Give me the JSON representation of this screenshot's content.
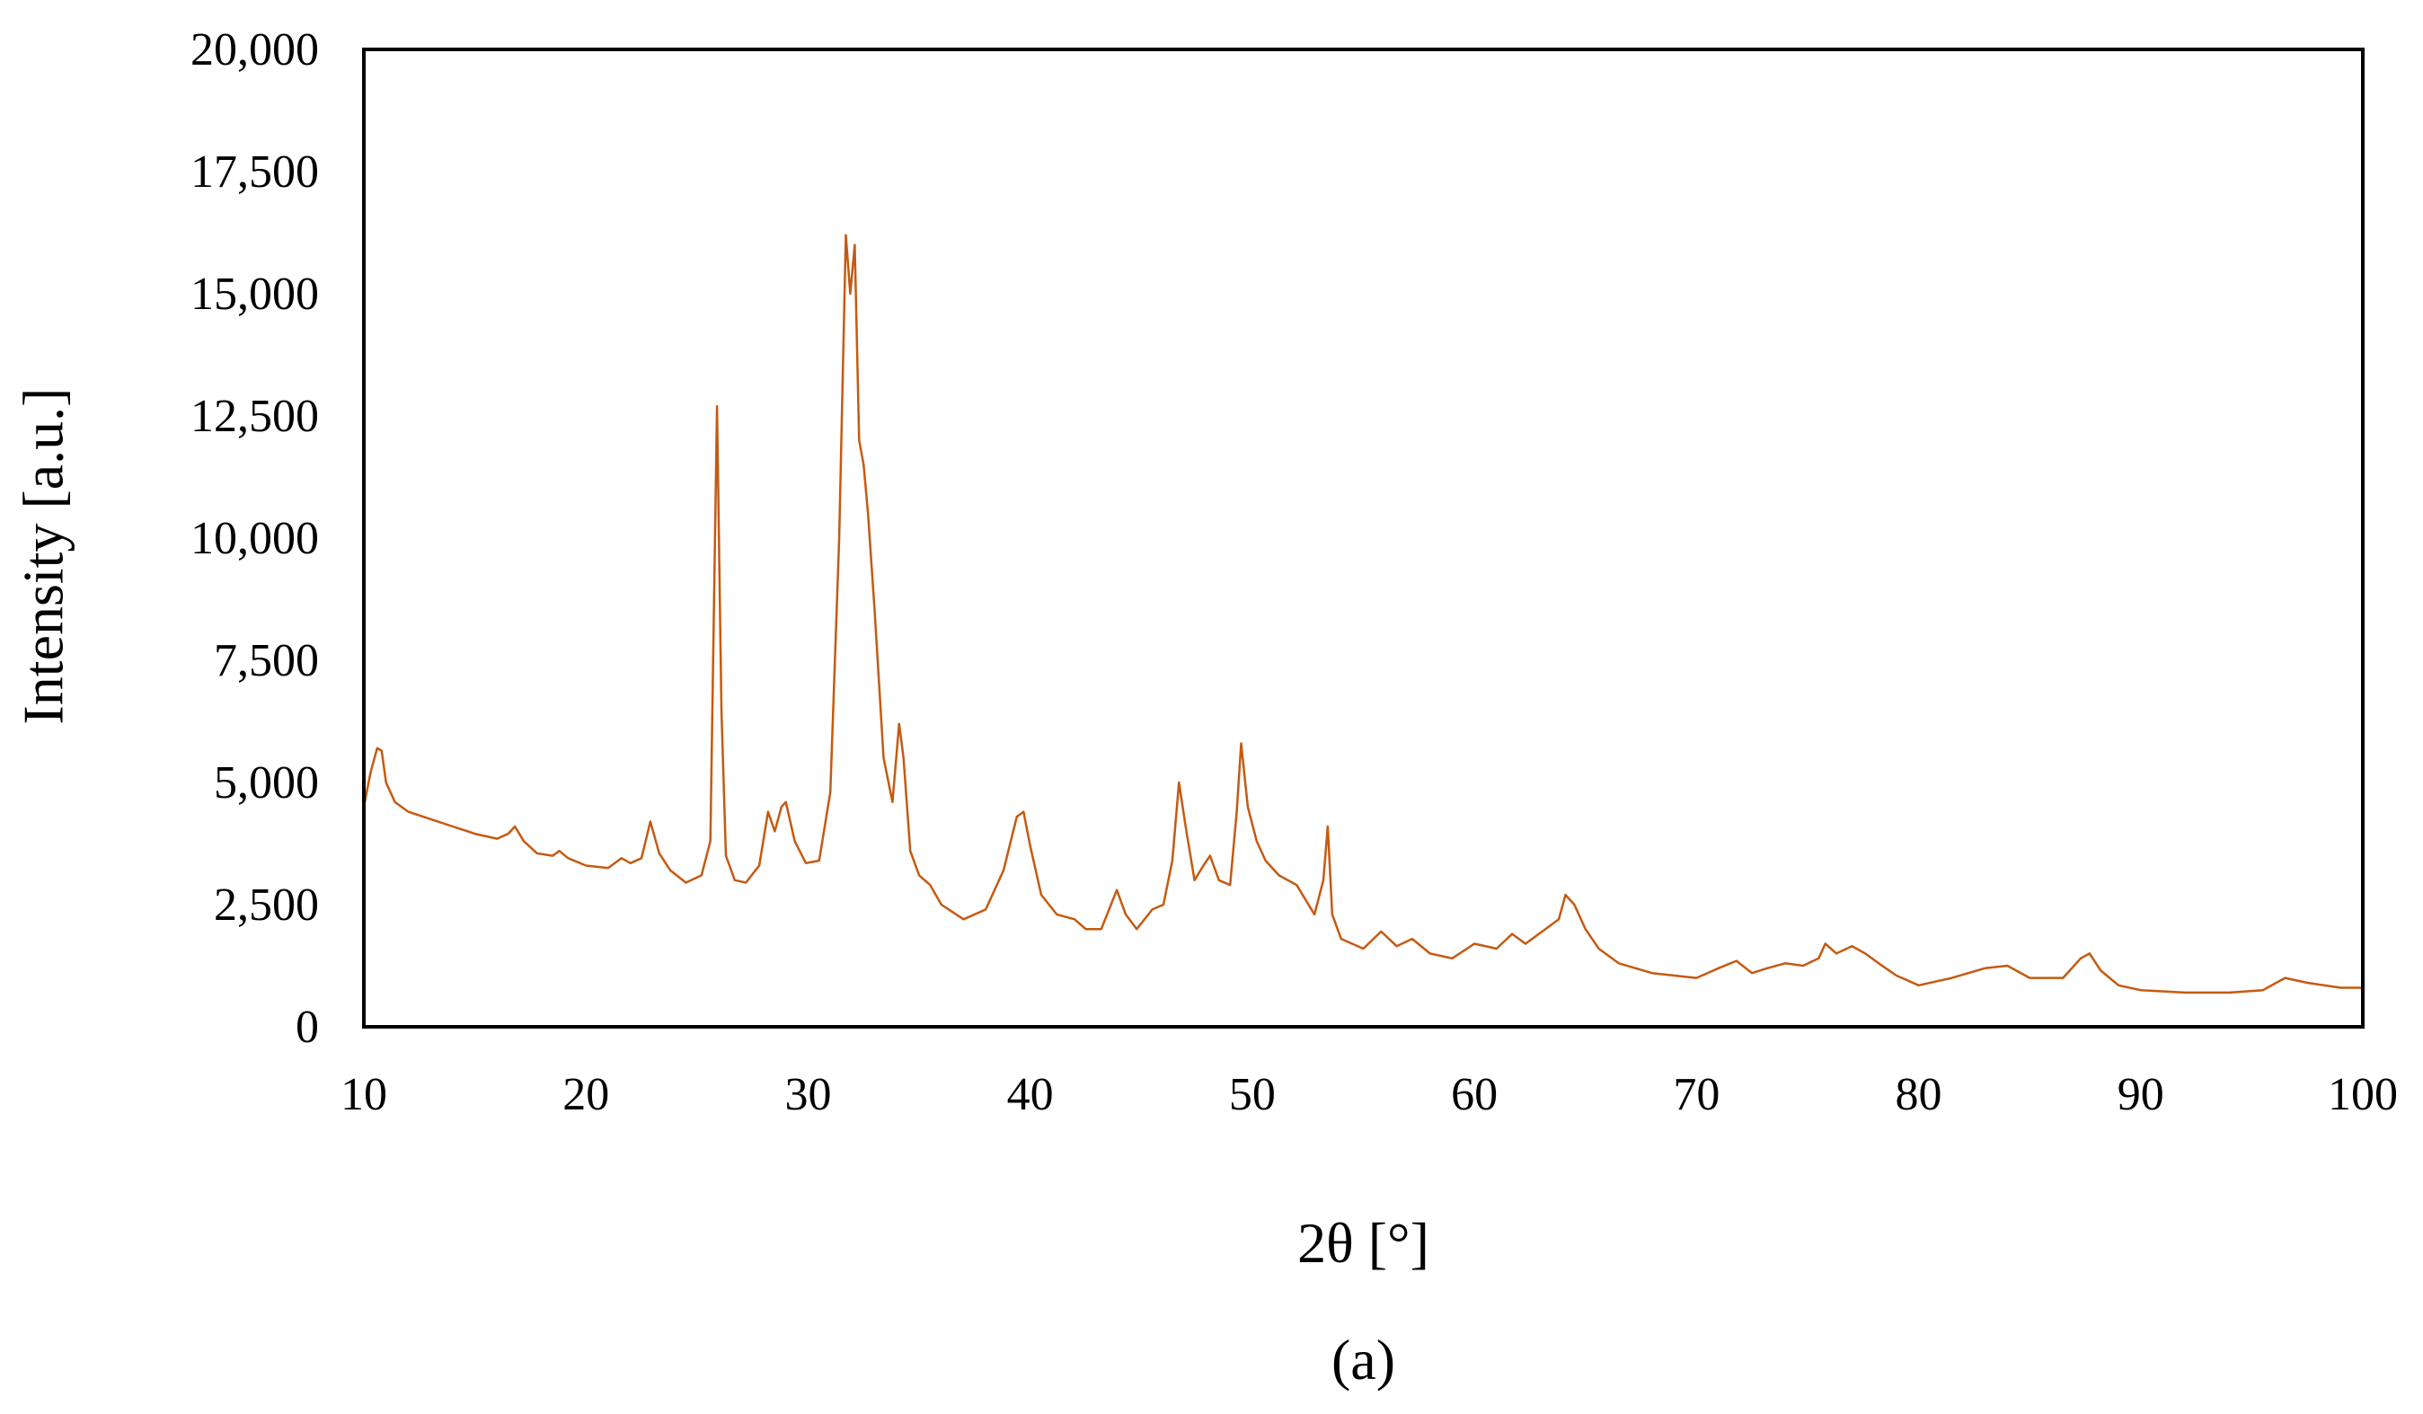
{
  "chart_data": {
    "type": "line",
    "title": "",
    "xlabel": "2θ [°]",
    "ylabel": "Intensity [a.u.]",
    "panel_label": "(a)",
    "xlim": [
      10,
      100
    ],
    "ylim": [
      0,
      20000
    ],
    "x_ticks": [
      10,
      20,
      30,
      40,
      50,
      60,
      70,
      80,
      90,
      100
    ],
    "x_tick_labels": [
      "10",
      "20",
      "30",
      "40",
      "50",
      "60",
      "70",
      "80",
      "90",
      "100"
    ],
    "y_ticks": [
      0,
      2500,
      5000,
      7500,
      10000,
      12500,
      15000,
      17500,
      20000
    ],
    "y_tick_labels": [
      "0",
      "2,500",
      "5,000",
      "7,500",
      "10,000",
      "12,500",
      "15,000",
      "17,500",
      "20,000"
    ],
    "grid": false,
    "legend": "none",
    "series": [
      {
        "color": "#c55a11",
        "x": [
          10.0,
          10.3,
          10.6,
          10.8,
          11.0,
          11.4,
          12.0,
          13.0,
          14.0,
          15.0,
          16.0,
          16.5,
          16.8,
          17.2,
          17.8,
          18.5,
          18.8,
          19.2,
          20.0,
          21.0,
          21.6,
          22.0,
          22.5,
          22.9,
          23.3,
          23.8,
          24.5,
          25.2,
          25.6,
          25.9,
          26.1,
          26.3,
          26.7,
          27.2,
          27.8,
          28.2,
          28.5,
          28.8,
          29.0,
          29.4,
          29.9,
          30.5,
          31.0,
          31.4,
          31.7,
          31.9,
          32.1,
          32.3,
          32.5,
          32.7,
          33.0,
          33.4,
          33.8,
          34.1,
          34.3,
          34.6,
          35.0,
          35.5,
          36.0,
          37.0,
          38.0,
          38.8,
          39.4,
          39.7,
          40.0,
          40.5,
          41.2,
          42.0,
          42.5,
          43.2,
          43.9,
          44.3,
          44.8,
          45.5,
          46.0,
          46.4,
          46.7,
          47.0,
          47.4,
          47.8,
          48.1,
          48.5,
          49.0,
          49.3,
          49.5,
          49.8,
          50.2,
          50.6,
          51.2,
          52.0,
          52.8,
          53.2,
          53.4,
          53.6,
          54.0,
          55.0,
          55.8,
          56.5,
          57.2,
          58.0,
          59.0,
          60.0,
          61.0,
          61.7,
          62.3,
          63.2,
          63.8,
          64.1,
          64.5,
          65.0,
          65.6,
          66.5,
          68.0,
          70.0,
          71.0,
          71.8,
          72.5,
          73.2,
          74.0,
          74.8,
          75.5,
          75.8,
          76.3,
          77.0,
          77.6,
          78.2,
          79.0,
          80.0,
          81.5,
          83.0,
          84.0,
          85.0,
          86.5,
          87.3,
          87.7,
          88.2,
          89.0,
          90.0,
          92.0,
          94.0,
          95.5,
          96.5,
          97.5,
          99.0,
          100.0
        ],
        "values": [
          4500,
          5200,
          5700,
          5650,
          5000,
          4600,
          4400,
          4250,
          4100,
          3950,
          3850,
          3950,
          4100,
          3800,
          3550,
          3500,
          3600,
          3450,
          3300,
          3250,
          3450,
          3350,
          3450,
          4200,
          3550,
          3200,
          2950,
          3100,
          3800,
          12700,
          6500,
          3500,
          3000,
          2950,
          3300,
          4400,
          4000,
          4500,
          4600,
          3800,
          3350,
          3400,
          4800,
          10000,
          16200,
          15000,
          16000,
          12000,
          11500,
          10500,
          8500,
          5500,
          4600,
          6200,
          5500,
          3600,
          3100,
          2900,
          2500,
          2200,
          2400,
          3200,
          4300,
          4400,
          3700,
          2700,
          2300,
          2200,
          2000,
          2000,
          2800,
          2300,
          2000,
          2400,
          2500,
          3400,
          5000,
          4100,
          3000,
          3300,
          3500,
          3000,
          2900,
          4400,
          5800,
          4500,
          3800,
          3400,
          3100,
          2900,
          2300,
          3000,
          4100,
          2300,
          1800,
          1600,
          1950,
          1650,
          1800,
          1500,
          1400,
          1700,
          1600,
          1900,
          1700,
          2000,
          2200,
          2700,
          2500,
          2000,
          1600,
          1300,
          1100,
          1000,
          1200,
          1350,
          1100,
          1200,
          1300,
          1250,
          1400,
          1700,
          1500,
          1650,
          1500,
          1300,
          1050,
          850,
          1000,
          1200,
          1250,
          1000,
          1000,
          1400,
          1500,
          1150,
          850,
          750,
          700,
          700,
          750,
          1000,
          900,
          800,
          800
        ]
      }
    ]
  }
}
